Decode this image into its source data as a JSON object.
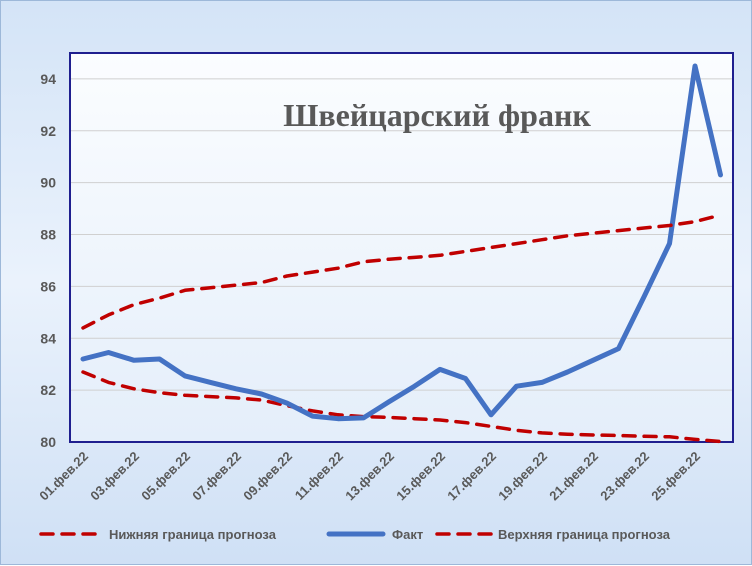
{
  "chart_data": {
    "type": "line",
    "title": "Швейцарский франк",
    "xlabel": "",
    "ylabel": "",
    "ylim": [
      80,
      95
    ],
    "yticks": [
      80,
      82,
      84,
      86,
      88,
      90,
      92,
      94
    ],
    "x": [
      "01.фев.22",
      "02.фев.22",
      "03.фев.22",
      "04.фев.22",
      "05.фев.22",
      "06.фев.22",
      "07.фев.22",
      "08.фев.22",
      "09.фев.22",
      "10.фев.22",
      "11.фев.22",
      "12.фев.22",
      "13.фев.22",
      "14.фев.22",
      "15.фев.22",
      "16.фев.22",
      "17.фев.22",
      "18.фев.22",
      "19.фев.22",
      "20.фев.22",
      "21.фев.22",
      "22.фев.22",
      "23.фев.22",
      "24.фев.22",
      "25.фев.22",
      "26.фев.22"
    ],
    "xtick_labels": [
      "01.фев.22",
      "03.фев.22",
      "05.фев.22",
      "07.фев.22",
      "09.фев.22",
      "11.фев.22",
      "13.фев.22",
      "15.фев.22",
      "17.фев.22",
      "19.фев.22",
      "21.фев.22",
      "23.фев.22",
      "25.фев.22"
    ],
    "series": [
      {
        "name": "Нижняя граница прогноза",
        "style": "dashed",
        "color": "#c00000",
        "values": [
          82.7,
          82.3,
          82.05,
          81.9,
          81.8,
          81.75,
          81.7,
          81.62,
          81.4,
          81.2,
          81.05,
          80.98,
          80.95,
          80.9,
          80.85,
          80.75,
          80.6,
          80.45,
          80.35,
          80.3,
          80.27,
          80.25,
          80.22,
          80.2,
          80.1,
          80.02
        ]
      },
      {
        "name": "Факт",
        "style": "solid",
        "color": "#4472c4",
        "values": [
          83.2,
          83.45,
          83.15,
          83.2,
          82.55,
          82.3,
          82.05,
          81.85,
          81.5,
          81.0,
          80.9,
          80.93,
          81.55,
          82.15,
          82.8,
          82.45,
          81.05,
          82.15,
          82.3,
          82.7,
          83.15,
          83.6,
          85.6,
          87.65,
          94.5,
          90.3
        ]
      },
      {
        "name": "Верхняя граница прогноза",
        "style": "dashed",
        "color": "#c00000",
        "values": [
          84.4,
          84.9,
          85.3,
          85.55,
          85.85,
          85.95,
          86.05,
          86.15,
          86.4,
          86.55,
          86.7,
          86.95,
          87.05,
          87.12,
          87.2,
          87.35,
          87.5,
          87.65,
          87.8,
          87.95,
          88.05,
          88.15,
          88.25,
          88.35,
          88.5,
          88.75
        ]
      }
    ],
    "grid": true,
    "legend_position": "bottom"
  },
  "colors": {
    "background_top": "#d4e4f7",
    "plot_background": "#f3f8fe",
    "plot_border": "#1f1f8f",
    "grid": "#d0d0d0",
    "text": "#595959"
  }
}
